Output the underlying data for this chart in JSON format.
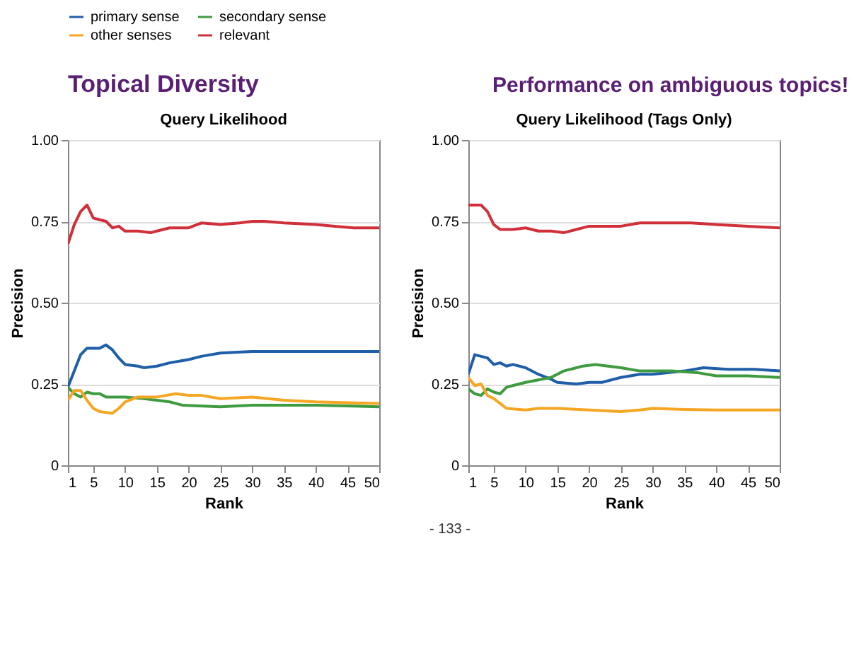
{
  "chart_data": [
    {
      "type": "line",
      "title": "Query Likelihood",
      "xlabel": "Rank",
      "ylabel": "Precision",
      "annotations": [
        "Topical Diversity",
        "Performance on ambiguous topics!",
        "- 133 -"
      ],
      "xlim": [
        1,
        50
      ],
      "xticks": [
        1,
        5,
        10,
        15,
        20,
        25,
        30,
        35,
        40,
        45,
        50
      ],
      "ylim": [
        0,
        1
      ],
      "yticks": [
        0,
        {
          "value": 0.25,
          "label": "0.25"
        },
        {
          "value": 0.5,
          "label": "0.50"
        },
        {
          "value": 0.75,
          "label": "0.75"
        },
        {
          "value": 1,
          "label": "1.00"
        }
      ],
      "grid": "y",
      "legend": "top",
      "marker": "none",
      "line_style": "solid",
      "series": [
        {
          "name": "primary sense",
          "color": "#1f5fa8",
          "x": [
            1,
            2,
            3,
            4,
            5,
            6,
            7,
            8,
            9,
            10,
            12,
            13,
            15,
            17,
            20,
            22,
            25,
            30,
            35,
            40,
            45,
            50
          ],
          "values": [
            0.24,
            0.29,
            0.34,
            0.36,
            0.36,
            0.36,
            0.37,
            0.355,
            0.33,
            0.31,
            0.305,
            0.3,
            0.305,
            0.315,
            0.325,
            0.335,
            0.345,
            0.35,
            0.35,
            0.35,
            0.35,
            0.35
          ]
        },
        {
          "name": "secondary sense",
          "color": "#3f9b3f",
          "x": [
            1,
            2,
            3,
            4,
            5,
            6,
            7,
            10,
            13,
            17,
            19,
            25,
            30,
            35,
            40,
            50
          ],
          "values": [
            0.24,
            0.22,
            0.21,
            0.225,
            0.22,
            0.22,
            0.21,
            0.21,
            0.205,
            0.195,
            0.185,
            0.18,
            0.185,
            0.185,
            0.185,
            0.18
          ]
        },
        {
          "name": "other senses",
          "color": "#f5a623",
          "x": [
            1,
            2,
            3,
            4,
            5,
            6,
            8,
            9,
            10,
            12,
            15,
            18,
            20,
            22,
            25,
            30,
            35,
            40,
            50
          ],
          "values": [
            0.2,
            0.23,
            0.23,
            0.2,
            0.175,
            0.165,
            0.16,
            0.175,
            0.195,
            0.21,
            0.21,
            0.22,
            0.215,
            0.215,
            0.205,
            0.21,
            0.2,
            0.195,
            0.19
          ]
        },
        {
          "name": "relevant",
          "color": "#d0303a",
          "x": [
            1,
            2,
            3,
            4,
            5,
            6,
            7,
            8,
            9,
            10,
            12,
            14,
            15,
            17,
            20,
            22,
            25,
            28,
            30,
            32,
            35,
            40,
            43,
            46,
            50
          ],
          "values": [
            0.68,
            0.74,
            0.78,
            0.8,
            0.76,
            0.755,
            0.75,
            0.73,
            0.735,
            0.72,
            0.72,
            0.715,
            0.72,
            0.73,
            0.73,
            0.745,
            0.74,
            0.745,
            0.75,
            0.75,
            0.745,
            0.74,
            0.735,
            0.73,
            0.73
          ]
        }
      ]
    },
    {
      "type": "line",
      "title": "Query Likelihood (Tags Only)",
      "xlabel": "Rank",
      "ylabel": "Precision",
      "xlim": [
        1,
        50
      ],
      "xticks": [
        1,
        5,
        10,
        15,
        20,
        25,
        30,
        35,
        40,
        45,
        50
      ],
      "ylim": [
        0,
        1
      ],
      "yticks": [
        0,
        {
          "value": 0.25,
          "label": "0.25"
        },
        {
          "value": 0.5,
          "label": "0.50"
        },
        {
          "value": 0.75,
          "label": "0.75"
        },
        {
          "value": 1,
          "label": "1.00"
        }
      ],
      "grid": "y",
      "legend": "top",
      "marker": "none",
      "line_style": "solid",
      "series": [
        {
          "name": "primary sense",
          "color": "#1f5fa8",
          "x": [
            1,
            2,
            3,
            4,
            5,
            6,
            7,
            8,
            10,
            12,
            14,
            15,
            18,
            20,
            22,
            25,
            28,
            30,
            35,
            38,
            42,
            46,
            50
          ],
          "values": [
            0.28,
            0.34,
            0.335,
            0.33,
            0.31,
            0.315,
            0.305,
            0.31,
            0.3,
            0.28,
            0.265,
            0.255,
            0.25,
            0.255,
            0.255,
            0.27,
            0.28,
            0.28,
            0.29,
            0.3,
            0.295,
            0.295,
            0.29
          ]
        },
        {
          "name": "secondary sense",
          "color": "#3f9b3f",
          "x": [
            1,
            2,
            3,
            4,
            5,
            6,
            7,
            8,
            10,
            14,
            16,
            19,
            21,
            25,
            28,
            33,
            37,
            40,
            45,
            50
          ],
          "values": [
            0.235,
            0.22,
            0.215,
            0.235,
            0.225,
            0.22,
            0.24,
            0.245,
            0.255,
            0.27,
            0.29,
            0.305,
            0.31,
            0.3,
            0.29,
            0.29,
            0.285,
            0.275,
            0.275,
            0.27
          ]
        },
        {
          "name": "other senses",
          "color": "#f5a623",
          "x": [
            1,
            2,
            3,
            4,
            5,
            6,
            7,
            10,
            12,
            15,
            20,
            25,
            28,
            30,
            35,
            40,
            50
          ],
          "values": [
            0.27,
            0.245,
            0.25,
            0.215,
            0.205,
            0.19,
            0.175,
            0.17,
            0.175,
            0.175,
            0.17,
            0.165,
            0.17,
            0.175,
            0.172,
            0.17,
            0.17
          ]
        },
        {
          "name": "relevant",
          "color": "#d0303a",
          "x": [
            1,
            3,
            4,
            5,
            6,
            8,
            10,
            12,
            14,
            16,
            18,
            20,
            25,
            28,
            32,
            36,
            40,
            45,
            50
          ],
          "values": [
            0.8,
            0.8,
            0.78,
            0.74,
            0.725,
            0.725,
            0.73,
            0.72,
            0.72,
            0.715,
            0.725,
            0.735,
            0.735,
            0.745,
            0.745,
            0.745,
            0.74,
            0.735,
            0.73
          ]
        }
      ]
    }
  ]
}
